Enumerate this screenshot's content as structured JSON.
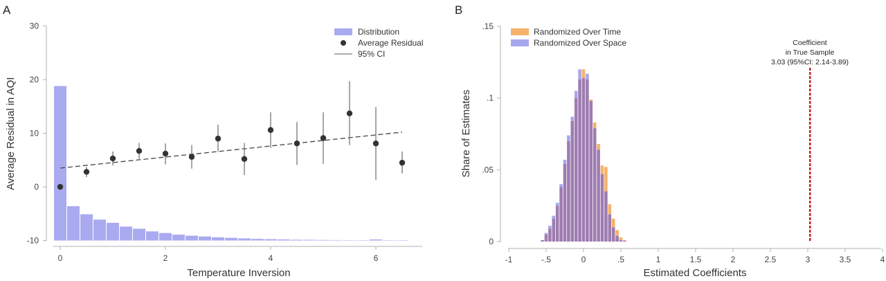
{
  "panels": {
    "a_label": "A",
    "b_label": "B"
  },
  "chart_data": [
    {
      "type": "bar",
      "panel": "A",
      "xlabel": "Temperature Inversion",
      "ylabel": "Average Residual in AQI",
      "xlim": [
        -0.25,
        6.9
      ],
      "ylim": [
        -10,
        30
      ],
      "xticks": [
        0,
        2,
        4,
        6
      ],
      "yticks": [
        -10,
        0,
        10,
        20,
        30
      ],
      "legend": {
        "position": "top-right",
        "entries": [
          "Distribution",
          "Average Residual",
          "95% CI"
        ]
      },
      "colors": {
        "distribution": "#aaaaf0",
        "points": "#333333",
        "ci": "#777777",
        "fit": "#444444"
      },
      "distribution": {
        "name": "Distribution",
        "bin_width": 0.25,
        "x": [
          0,
          0.25,
          0.5,
          0.75,
          1,
          1.25,
          1.5,
          1.75,
          2,
          2.25,
          2.5,
          2.75,
          3,
          3.25,
          3.5,
          3.75,
          4,
          4.25,
          4.5,
          4.75,
          5,
          5.25,
          5.5,
          5.75,
          6,
          6.25,
          6.5
        ],
        "values": [
          18.8,
          -3.6,
          -5.1,
          -6.1,
          -6.7,
          -7.4,
          -7.8,
          -8.3,
          -8.6,
          -8.9,
          -9.1,
          -9.25,
          -9.4,
          -9.5,
          -9.6,
          -9.7,
          -9.75,
          -9.8,
          -9.85,
          -9.87,
          -9.9,
          -9.92,
          -9.93,
          -9.95,
          -9.8,
          -9.97,
          -9.98
        ]
      },
      "average_residual": {
        "name": "Average Residual",
        "x": [
          0,
          0.5,
          1,
          1.5,
          2,
          2.5,
          3,
          3.5,
          4,
          4.5,
          5,
          5.5,
          6,
          6.5
        ],
        "y": [
          0,
          2.8,
          5.3,
          6.7,
          6.2,
          5.6,
          9.0,
          5.2,
          10.6,
          8.1,
          9.1,
          13.7,
          8.1,
          4.5
        ],
        "ci_low": [
          0,
          1.8,
          4.0,
          5.2,
          4.2,
          3.4,
          6.6,
          2.2,
          7.3,
          4.1,
          4.3,
          7.8,
          1.3,
          2.5
        ],
        "ci_high": [
          0,
          3.7,
          6.6,
          8.2,
          8.1,
          7.8,
          11.6,
          8.2,
          13.9,
          12.1,
          13.9,
          19.7,
          14.9,
          6.6
        ]
      },
      "fit_line": {
        "x": [
          0,
          6.5
        ],
        "y": [
          3.5,
          10.2
        ]
      }
    },
    {
      "type": "bar",
      "panel": "B",
      "xlabel": "Estimated Coefficients",
      "ylabel": "Share of Estimates",
      "xlim": [
        -1,
        4
      ],
      "ylim": [
        0,
        0.15
      ],
      "xticks": [
        -1,
        -0.5,
        0,
        0.5,
        1,
        1.5,
        2,
        2.5,
        3,
        3.5,
        4
      ],
      "xtick_labels": [
        "-1",
        "-.5",
        "0",
        ".5",
        "1",
        "1.5",
        "2",
        "2.5",
        "3",
        "3.5",
        "4"
      ],
      "yticks": [
        0,
        0.05,
        0.1,
        0.15
      ],
      "ytick_labels": [
        "0",
        ".05",
        ".1",
        ".15"
      ],
      "legend": {
        "position": "top-left"
      },
      "bin_width": 0.05,
      "bins": [
        -0.55,
        -0.5,
        -0.45,
        -0.4,
        -0.35,
        -0.3,
        -0.25,
        -0.2,
        -0.15,
        -0.1,
        -0.05,
        0,
        0.05,
        0.1,
        0.15,
        0.2,
        0.25,
        0.3,
        0.35,
        0.4,
        0.45,
        0.5,
        0.55
      ],
      "series": [
        {
          "name": "Randomized Over Time",
          "color": "#f5b26a",
          "values": [
            0.001,
            0.005,
            0.009,
            0.016,
            0.025,
            0.038,
            0.054,
            0.07,
            0.084,
            0.1,
            0.113,
            0.12,
            0.113,
            0.099,
            0.083,
            0.068,
            0.053,
            0.052,
            0.026,
            0.016,
            0.008,
            0.003,
            0.001
          ]
        },
        {
          "name": "Randomized Over Space",
          "color": "#a8a6ec",
          "values": [
            0.001,
            0.006,
            0.011,
            0.018,
            0.027,
            0.04,
            0.057,
            0.074,
            0.087,
            0.105,
            0.12,
            0.114,
            0.117,
            0.098,
            0.079,
            0.064,
            0.047,
            0.035,
            0.019,
            0.01,
            0.004,
            0.001,
            0.0005
          ]
        }
      ],
      "overlap_color": "#9e7cb0",
      "reference_line": {
        "x": 3.03,
        "color": "#cc1f1f",
        "annotation": [
          "Coefficient",
          "in True Sample",
          "3.03 (95%CI: 2.14-3.89)"
        ]
      }
    }
  ]
}
